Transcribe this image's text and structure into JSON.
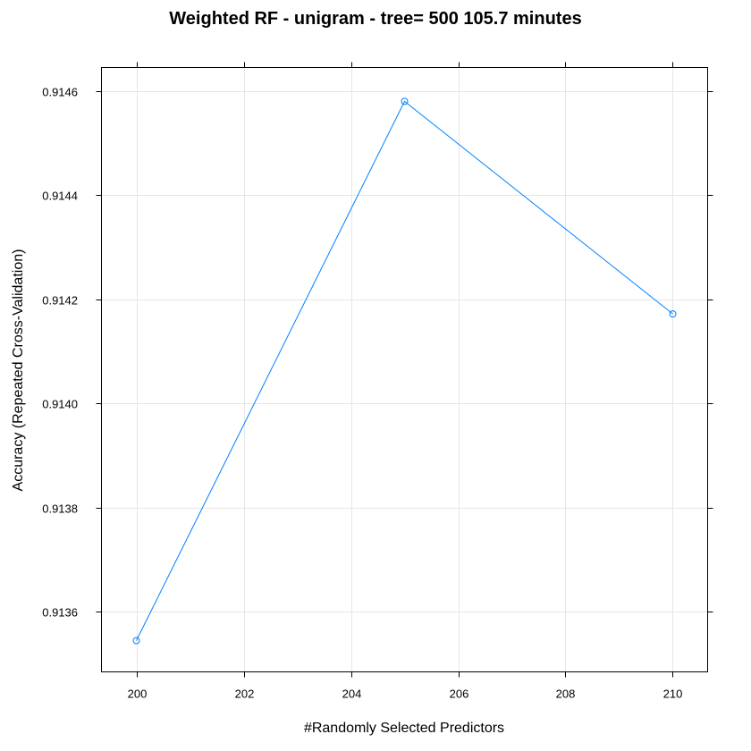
{
  "chart_data": {
    "type": "line",
    "title": "Weighted RF - unigram - tree= 500 105.7 minutes",
    "xlabel": "#Randomly Selected Predictors",
    "ylabel": "Accuracy (Repeated Cross-Validation)",
    "x": [
      200,
      205,
      210
    ],
    "series": [
      {
        "values": [
          0.913545,
          0.91458,
          0.914172
        ]
      }
    ],
    "xlim": [
      199.35,
      210.65
    ],
    "ylim": [
      0.913485,
      0.914645
    ],
    "xticks": [
      200,
      202,
      204,
      206,
      208,
      210
    ],
    "xtick_labels": [
      "200",
      "202",
      "204",
      "206",
      "208",
      "210"
    ],
    "yticks": [
      0.9136,
      0.9138,
      0.914,
      0.9142,
      0.9144,
      0.9146
    ],
    "ytick_labels": [
      "0.9136",
      "0.9138",
      "0.9140",
      "0.9142",
      "0.9144",
      "0.9146"
    ],
    "grid": true,
    "color": "#0080ff"
  }
}
